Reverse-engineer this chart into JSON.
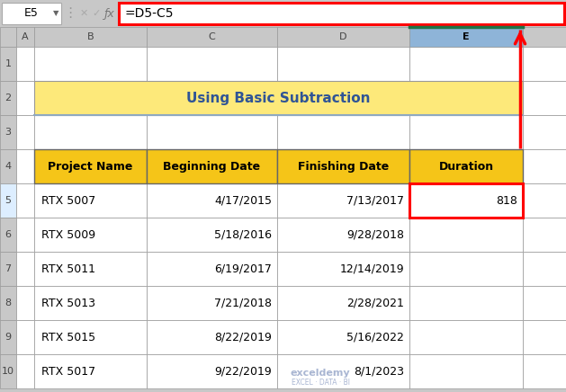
{
  "title": "Using Basic Subtraction",
  "formula_bar_cell": "E5",
  "formula_bar_formula": "=D5-C5",
  "col_headers": [
    "A",
    "B",
    "C",
    "D",
    "E"
  ],
  "row_numbers": [
    "1",
    "2",
    "3",
    "4",
    "5",
    "6",
    "7",
    "8",
    "9",
    "10"
  ],
  "table_headers": [
    "Project Name",
    "Beginning Date",
    "Finishing Date",
    "Duration"
  ],
  "table_data": [
    [
      "RTX 5007",
      "4/17/2015",
      "7/13/2017",
      "818"
    ],
    [
      "RTX 5009",
      "5/18/2016",
      "9/28/2018",
      ""
    ],
    [
      "RTX 5011",
      "6/19/2017",
      "12/14/2019",
      ""
    ],
    [
      "RTX 5013",
      "7/21/2018",
      "2/28/2021",
      ""
    ],
    [
      "RTX 5015",
      "8/22/2019",
      "5/16/2022",
      ""
    ],
    [
      "RTX 5017",
      "9/22/2019",
      "8/1/2023",
      ""
    ]
  ],
  "header_bg": "#F5C518",
  "title_bg": "#FDE97A",
  "title_color": "#2F5496",
  "cell_bg": "#FFFFFF",
  "grid_color": "#999999",
  "excel_bg": "#C8C8C8",
  "sheet_bg": "#F2F2F2",
  "formula_bar_border": "#FF0000",
  "cell_highlight_border": "#FF0000",
  "col_header_selected_bg": "#8EB4D8",
  "col_header_selected_border": "#217346",
  "row_header_selected_bg": "#DDEEFF",
  "watermark_color": "#A0AECE"
}
